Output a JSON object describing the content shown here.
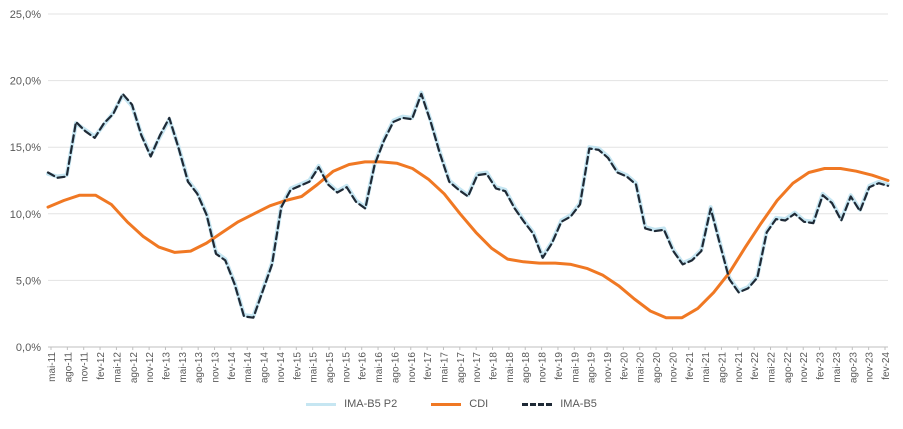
{
  "chart_data": {
    "type": "line",
    "title": "",
    "xlabel": "",
    "ylabel": "",
    "ylim": [
      0,
      25
    ],
    "y_ticks": [
      "0,0%",
      "5,0%",
      "10,0%",
      "15,0%",
      "20,0%",
      "25,0%"
    ],
    "x_ticks": [
      "mai-11",
      "ago-11",
      "nov-11",
      "fev-12",
      "mai-12",
      "ago-12",
      "nov-12",
      "fev-13",
      "mai-13",
      "ago-13",
      "nov-13",
      "fev-14",
      "mai-14",
      "ago-14",
      "nov-14",
      "fev-15",
      "mai-15",
      "ago-15",
      "nov-15",
      "fev-16",
      "mai-16",
      "ago-16",
      "nov-16",
      "fev-17",
      "mai-17",
      "ago-17",
      "nov-17",
      "fev-18",
      "mai-18",
      "ago-18",
      "nov-18",
      "fev-19",
      "mai-19",
      "ago-19",
      "nov-19",
      "fev-20",
      "mai-20",
      "ago-20",
      "nov-20",
      "fev-21",
      "mai-21",
      "ago-21",
      "nov-21",
      "fev-22",
      "mai-22",
      "ago-22",
      "nov-22",
      "fev-23",
      "mai-23",
      "ago-23",
      "nov-23",
      "fev-24"
    ],
    "grid": true,
    "legend_position": "bottom",
    "series": [
      {
        "name": "IMA-B5 P2",
        "color": "#c6e6f2",
        "style": "solid",
        "values": [
          13.0,
          12.8,
          12.9,
          16.8,
          16.3,
          15.8,
          16.7,
          17.6,
          18.9,
          18.1,
          16.0,
          14.4,
          15.8,
          17.1,
          15.0,
          12.5,
          11.6,
          10.0,
          7.1,
          6.6,
          4.8,
          2.4,
          2.3,
          4.3,
          6.3,
          10.6,
          11.9,
          12.2,
          12.5,
          13.6,
          12.3,
          11.7,
          12.1,
          11.0,
          10.5,
          13.8,
          15.6,
          17.0,
          17.3,
          17.2,
          19.1,
          17.0,
          14.6,
          12.5,
          11.9,
          11.4,
          13.0,
          13.1,
          12.0,
          11.8,
          10.5,
          9.5,
          8.6,
          6.8,
          7.9,
          9.5,
          9.9,
          10.8,
          15.0,
          14.9,
          14.3,
          13.2,
          12.9,
          12.3,
          9.0,
          8.8,
          8.9,
          7.3,
          6.3,
          6.6,
          7.3,
          10.5,
          7.8,
          5.2,
          4.2,
          4.5,
          5.3,
          8.7,
          9.7,
          9.6,
          10.1,
          9.5,
          9.4,
          11.5,
          10.9,
          9.6,
          11.4,
          10.3,
          12.1,
          12.4,
          12.2
        ]
      },
      {
        "name": "CDI",
        "color": "#f07823",
        "style": "solid",
        "values": [
          10.5,
          11.0,
          11.4,
          11.4,
          10.7,
          9.4,
          8.3,
          7.5,
          7.1,
          7.2,
          7.8,
          8.6,
          9.4,
          10.0,
          10.6,
          11.0,
          11.3,
          12.2,
          13.2,
          13.7,
          13.9,
          13.9,
          13.8,
          13.4,
          12.6,
          11.5,
          10.0,
          8.6,
          7.4,
          6.6,
          6.4,
          6.3,
          6.3,
          6.2,
          5.9,
          5.4,
          4.6,
          3.6,
          2.7,
          2.2,
          2.2,
          2.9,
          4.1,
          5.6,
          7.5,
          9.3,
          11.0,
          12.3,
          13.1,
          13.4,
          13.4,
          13.2,
          12.9,
          12.5
        ]
      },
      {
        "name": "IMA-B5",
        "color": "#1f2a36",
        "style": "dashed",
        "values": [
          13.1,
          12.7,
          12.8,
          16.9,
          16.2,
          15.7,
          16.8,
          17.5,
          19.0,
          18.2,
          15.9,
          14.3,
          15.9,
          17.2,
          14.9,
          12.4,
          11.5,
          9.9,
          7.0,
          6.5,
          4.7,
          2.3,
          2.2,
          4.2,
          6.2,
          10.5,
          11.8,
          12.1,
          12.4,
          13.5,
          12.2,
          11.6,
          12.0,
          10.9,
          10.4,
          13.7,
          15.5,
          16.9,
          17.2,
          17.1,
          19.0,
          16.9,
          14.5,
          12.4,
          11.8,
          11.3,
          12.9,
          13.0,
          11.9,
          11.7,
          10.4,
          9.4,
          8.5,
          6.7,
          7.8,
          9.4,
          9.8,
          10.7,
          14.9,
          14.8,
          14.2,
          13.1,
          12.8,
          12.2,
          8.9,
          8.7,
          8.8,
          7.2,
          6.2,
          6.5,
          7.2,
          10.4,
          7.7,
          5.1,
          4.1,
          4.4,
          5.2,
          8.6,
          9.6,
          9.5,
          10.0,
          9.4,
          9.3,
          11.4,
          10.8,
          9.5,
          11.3,
          10.2,
          12.0,
          12.3,
          12.1
        ]
      }
    ]
  }
}
